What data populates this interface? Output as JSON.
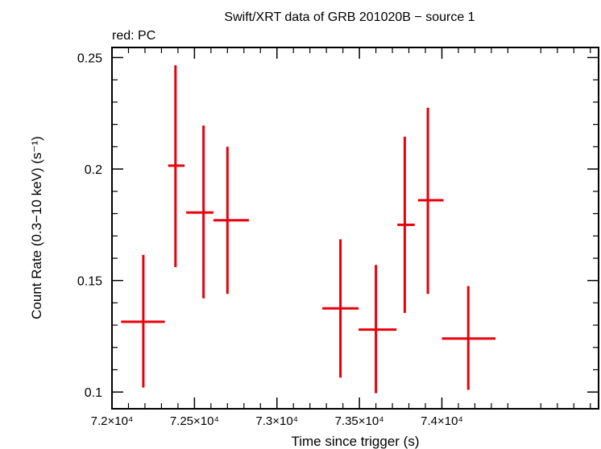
{
  "chart_data": {
    "type": "scatter",
    "title": "Swift/XRT data of GRB 201020B − source 1",
    "subtitle": "red: PC",
    "xlabel": "Time since trigger (s)",
    "ylabel": "Count Rate (0.3−10 keV) (s⁻¹)",
    "xlim": [
      72000,
      74950
    ],
    "ylim": [
      0.0925,
      0.2545
    ],
    "x_ticks": [
      {
        "value": 72000,
        "label": "7.2×10⁴"
      },
      {
        "value": 72500,
        "label": "7.25×10⁴"
      },
      {
        "value": 73000,
        "label": "7.3×10⁴"
      },
      {
        "value": 73500,
        "label": "7.35×10⁴"
      },
      {
        "value": 74000,
        "label": "7.4×10⁴"
      }
    ],
    "y_ticks": [
      {
        "value": 0.1,
        "label": "0.1"
      },
      {
        "value": 0.15,
        "label": "0.15"
      },
      {
        "value": 0.2,
        "label": "0.2"
      },
      {
        "value": 0.25,
        "label": "0.25"
      }
    ],
    "grid": false,
    "series": [
      {
        "color": "#e8000b",
        "points": [
          {
            "x": 72190,
            "xlo": 72055,
            "xhi": 72320,
            "y": 0.1315,
            "ylo": 0.102,
            "yhi": 0.1615
          },
          {
            "x": 72385,
            "xlo": 72340,
            "xhi": 72440,
            "y": 0.2015,
            "ylo": 0.156,
            "yhi": 0.2465
          },
          {
            "x": 72555,
            "xlo": 72450,
            "xhi": 72615,
            "y": 0.1805,
            "ylo": 0.142,
            "yhi": 0.2195
          },
          {
            "x": 72700,
            "xlo": 72615,
            "xhi": 72830,
            "y": 0.177,
            "ylo": 0.144,
            "yhi": 0.21
          },
          {
            "x": 73385,
            "xlo": 73275,
            "xhi": 73495,
            "y": 0.1375,
            "ylo": 0.1065,
            "yhi": 0.1685
          },
          {
            "x": 73600,
            "xlo": 73495,
            "xhi": 73725,
            "y": 0.128,
            "ylo": 0.0995,
            "yhi": 0.157
          },
          {
            "x": 73775,
            "xlo": 73730,
            "xhi": 73835,
            "y": 0.175,
            "ylo": 0.1355,
            "yhi": 0.2145
          },
          {
            "x": 73915,
            "xlo": 73855,
            "xhi": 74010,
            "y": 0.186,
            "ylo": 0.144,
            "yhi": 0.2275
          },
          {
            "x": 74160,
            "xlo": 74000,
            "xhi": 74325,
            "y": 0.124,
            "ylo": 0.101,
            "yhi": 0.1475
          }
        ]
      }
    ]
  }
}
